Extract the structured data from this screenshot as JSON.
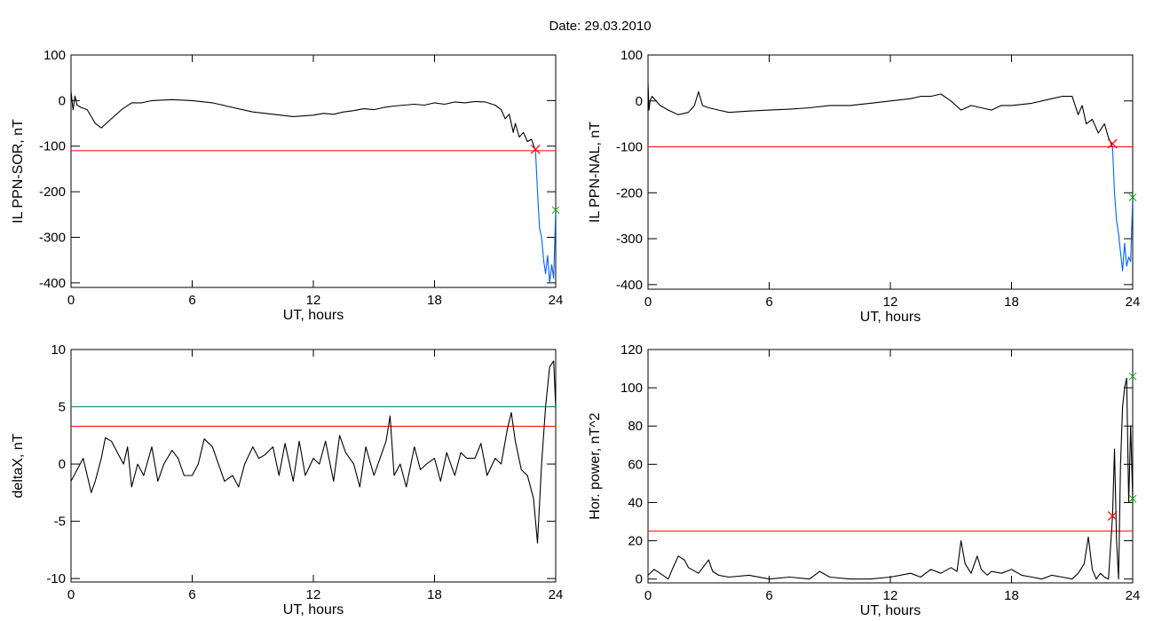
{
  "title": "Date:  29.03.2010",
  "colors": {
    "threshold": "#ff0000",
    "level2": "#008080",
    "blue": "#0060ff",
    "green": "#00b000",
    "trace": "#000000"
  },
  "chart_data": [
    {
      "type": "line",
      "xlabel": "UT, hours",
      "ylabel": "IL PPN-SOR, nT",
      "xlim": [
        0,
        24
      ],
      "ylim": [
        -410,
        100
      ],
      "xticks": [
        0,
        6,
        12,
        18,
        24
      ],
      "yticks": [
        -400,
        -300,
        -200,
        -100,
        0,
        100
      ],
      "threshold": -110,
      "marker": {
        "x": 23.0,
        "y": -107
      },
      "series": [
        {
          "x": [
            0,
            0.1,
            0.2,
            0.3,
            0.5,
            0.8,
            1.0,
            1.2,
            1.5,
            2.0,
            2.5,
            3.0,
            3.5,
            4.0,
            5.0,
            6.0,
            7.0,
            8.0,
            9.0,
            10.0,
            11.0,
            12.0,
            12.5,
            13.0,
            13.5,
            14.0,
            14.5,
            15.0,
            15.5,
            16.0,
            16.5,
            17.0,
            17.5,
            18.0,
            18.5,
            19.0,
            19.5,
            20.0,
            20.5,
            21.0,
            21.3,
            21.5,
            21.7,
            21.9,
            22.0,
            22.2,
            22.4,
            22.6,
            22.8,
            23.0
          ],
          "y": [
            20,
            -20,
            10,
            -10,
            -15,
            -20,
            -35,
            -50,
            -60,
            -40,
            -20,
            -5,
            -5,
            0,
            2,
            0,
            -5,
            -15,
            -25,
            -30,
            -35,
            -32,
            -28,
            -30,
            -25,
            -22,
            -18,
            -20,
            -15,
            -12,
            -10,
            -8,
            -10,
            -5,
            -8,
            -3,
            -5,
            -2,
            -3,
            -10,
            -20,
            -40,
            -30,
            -70,
            -50,
            -80,
            -70,
            -90,
            -85,
            -110
          ]
        },
        {
          "x": [
            23.0,
            23.1,
            23.2,
            23.3,
            23.4,
            23.5,
            23.6,
            23.7,
            23.8,
            23.9,
            24.0
          ],
          "y": [
            -110,
            -200,
            -280,
            -300,
            -350,
            -380,
            -340,
            -400,
            -360,
            -390,
            -240
          ]
        }
      ],
      "green_points": [
        {
          "x": 24.0,
          "y": -240
        }
      ]
    },
    {
      "type": "line",
      "xlabel": "UT, hours",
      "ylabel": "IL PPN-NAL, nT",
      "xlim": [
        0,
        24
      ],
      "ylim": [
        -410,
        100
      ],
      "xticks": [
        0,
        6,
        12,
        18,
        24
      ],
      "yticks": [
        -400,
        -300,
        -200,
        -100,
        0,
        100
      ],
      "threshold": -100,
      "marker": {
        "x": 23.0,
        "y": -93
      },
      "series": [
        {
          "x": [
            0,
            0.05,
            0.1,
            0.2,
            0.4,
            0.6,
            1.0,
            1.5,
            2.0,
            2.3,
            2.5,
            2.7,
            3.0,
            3.5,
            4.0,
            5.0,
            6.0,
            7.0,
            8.0,
            9.0,
            10.0,
            11.0,
            12.0,
            13.0,
            13.5,
            14.0,
            14.5,
            15.0,
            15.5,
            16.0,
            16.5,
            17.0,
            17.5,
            18.0,
            19.0,
            20.0,
            20.5,
            21.0,
            21.3,
            21.5,
            21.7,
            22.0,
            22.3,
            22.6,
            22.8,
            23.0
          ],
          "y": [
            40,
            -20,
            0,
            10,
            0,
            -10,
            -20,
            -30,
            -25,
            -10,
            20,
            -10,
            -15,
            -20,
            -25,
            -22,
            -20,
            -18,
            -15,
            -10,
            -10,
            -5,
            0,
            5,
            10,
            10,
            15,
            0,
            -20,
            -10,
            -15,
            -20,
            -10,
            -10,
            -5,
            5,
            10,
            10,
            -30,
            -10,
            -50,
            -40,
            -70,
            -50,
            -80,
            -100
          ]
        },
        {
          "x": [
            23.0,
            23.1,
            23.2,
            23.3,
            23.4,
            23.5,
            23.6,
            23.7,
            23.8,
            23.9,
            24.0
          ],
          "y": [
            -100,
            -200,
            -260,
            -290,
            -330,
            -370,
            -310,
            -360,
            -340,
            -350,
            -210
          ]
        }
      ],
      "green_points": [
        {
          "x": 24.0,
          "y": -210
        }
      ]
    },
    {
      "type": "line",
      "xlabel": "UT, hours",
      "ylabel": "deltaX, nT",
      "xlim": [
        0,
        24
      ],
      "ylim": [
        -10.3,
        10
      ],
      "xticks": [
        0,
        6,
        12,
        18,
        24
      ],
      "yticks": [
        -10,
        -5,
        0,
        5,
        10
      ],
      "threshold": 3.3,
      "level2": 5.0,
      "series": [
        {
          "x": [
            0,
            0.3,
            0.6,
            1.0,
            1.2,
            1.5,
            1.7,
            2.0,
            2.3,
            2.6,
            2.8,
            3.0,
            3.3,
            3.6,
            4.0,
            4.3,
            4.6,
            5.0,
            5.3,
            5.6,
            6.0,
            6.3,
            6.6,
            7.0,
            7.3,
            7.6,
            8.0,
            8.3,
            8.6,
            9.0,
            9.3,
            9.6,
            10.0,
            10.3,
            10.6,
            11.0,
            11.3,
            11.6,
            12.0,
            12.3,
            12.6,
            13.0,
            13.3,
            13.6,
            14.0,
            14.3,
            14.6,
            15.0,
            15.3,
            15.6,
            15.8,
            16.0,
            16.3,
            16.6,
            17.0,
            17.3,
            17.6,
            18.0,
            18.3,
            18.6,
            19.0,
            19.3,
            19.6,
            20.0,
            20.3,
            20.6,
            21.0,
            21.3,
            21.6,
            21.8,
            22.0,
            22.3,
            22.6,
            22.9,
            23.1,
            23.3,
            23.5,
            23.7,
            23.9,
            24.0
          ],
          "y": [
            -1.5,
            -0.5,
            0.5,
            -2.5,
            -1.5,
            0.5,
            2.3,
            2,
            1,
            0,
            1.5,
            -2,
            0,
            -1,
            1.5,
            -1.5,
            0,
            1.2,
            0.5,
            -1,
            -1,
            0,
            2.2,
            1.5,
            0,
            -1.5,
            -1,
            -2,
            0,
            1.5,
            0.5,
            0.8,
            1.5,
            -1,
            1.8,
            -1.5,
            2,
            -1,
            0.5,
            0,
            2,
            -1.5,
            2.5,
            1,
            0,
            -2,
            1.5,
            -1,
            0.5,
            2,
            4.2,
            -1,
            0,
            -2,
            1.5,
            -0.5,
            0,
            0.5,
            -1.5,
            1,
            -1,
            1,
            0.5,
            0.5,
            1.8,
            -1,
            0.5,
            0,
            3,
            4.5,
            2,
            -0.5,
            -1,
            -3,
            -6.9,
            0,
            5,
            8.5,
            9,
            5
          ]
        }
      ]
    },
    {
      "type": "line",
      "xlabel": "UT, hours",
      "ylabel": "Hor. power, nT^2",
      "xlim": [
        0,
        24
      ],
      "ylim": [
        -2,
        120
      ],
      "xticks": [
        0,
        6,
        12,
        18,
        24
      ],
      "yticks": [
        0,
        20,
        40,
        60,
        80,
        100,
        120
      ],
      "threshold": 25,
      "marker": {
        "x": 23.0,
        "y": 33
      },
      "series": [
        {
          "x": [
            0,
            0.3,
            0.6,
            1.0,
            1.2,
            1.5,
            1.8,
            2.0,
            2.5,
            3.0,
            3.2,
            3.5,
            4.0,
            5.0,
            6.0,
            7.0,
            8.0,
            8.5,
            9.0,
            10.0,
            11.0,
            12.0,
            12.5,
            13.0,
            13.5,
            14.0,
            14.5,
            15.0,
            15.3,
            15.5,
            15.7,
            16.0,
            16.3,
            16.5,
            16.8,
            17.0,
            17.5,
            18.0,
            18.5,
            19.0,
            19.5,
            20.0,
            20.5,
            21.0,
            21.3,
            21.6,
            21.8,
            22.0,
            22.2,
            22.4,
            22.6,
            22.8,
            23.0,
            23.1,
            23.2,
            23.3,
            23.4,
            23.5,
            23.6,
            23.7,
            23.8,
            23.9,
            24.0
          ],
          "y": [
            2,
            5,
            3,
            0,
            5,
            12,
            10,
            6,
            3,
            10,
            4,
            2,
            1,
            2,
            0,
            1,
            0,
            4,
            1,
            0,
            0,
            1,
            2,
            3,
            1,
            5,
            3,
            6,
            4,
            20,
            8,
            3,
            12,
            5,
            2,
            4,
            3,
            5,
            2,
            1,
            0,
            2,
            1,
            0,
            3,
            8,
            22,
            5,
            0,
            3,
            1,
            0,
            33,
            68,
            20,
            0,
            60,
            90,
            100,
            105,
            40,
            80,
            42
          ]
        }
      ],
      "green_points": [
        {
          "x": 24.0,
          "y": 106
        },
        {
          "x": 24.0,
          "y": 42
        }
      ]
    }
  ]
}
